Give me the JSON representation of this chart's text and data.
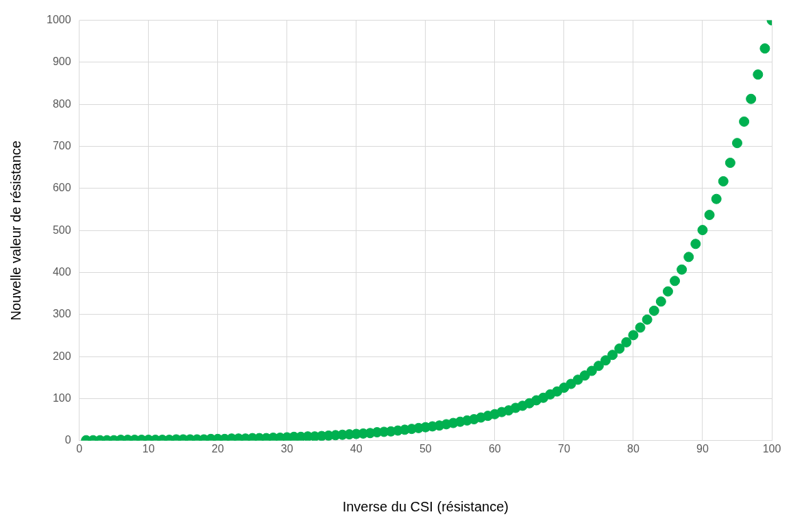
{
  "chart_data": {
    "type": "scatter",
    "xlabel": "Inverse du CSI (résistance)",
    "ylabel": "Nouvelle valeur de résistance",
    "x": [
      1,
      2,
      3,
      4,
      5,
      6,
      7,
      8,
      9,
      10,
      11,
      12,
      13,
      14,
      15,
      16,
      17,
      18,
      19,
      20,
      21,
      22,
      23,
      24,
      25,
      26,
      27,
      28,
      29,
      30,
      31,
      32,
      33,
      34,
      35,
      36,
      37,
      38,
      39,
      40,
      41,
      42,
      43,
      44,
      45,
      46,
      47,
      48,
      49,
      50,
      51,
      52,
      53,
      54,
      55,
      56,
      57,
      58,
      59,
      60,
      61,
      62,
      63,
      64,
      65,
      66,
      67,
      68,
      69,
      70,
      71,
      72,
      73,
      74,
      75,
      76,
      77,
      78,
      79,
      80,
      81,
      82,
      83,
      84,
      85,
      86,
      87,
      88,
      89,
      90,
      91,
      92,
      93,
      94,
      95,
      96,
      97,
      98,
      99,
      100
    ],
    "series": [
      {
        "color": "#00b050",
        "values": [
          1,
          1,
          1,
          1,
          1,
          2,
          2,
          2,
          2,
          2,
          2,
          2,
          2,
          3,
          3,
          3,
          3,
          3,
          4,
          4,
          4,
          5,
          5,
          5,
          6,
          6,
          6,
          7,
          7,
          8,
          9,
          9,
          10,
          10,
          11,
          12,
          13,
          14,
          15,
          16,
          17,
          18,
          20,
          21,
          22,
          24,
          26,
          28,
          30,
          32,
          34,
          36,
          39,
          42,
          45,
          48,
          51,
          55,
          59,
          63,
          68,
          72,
          78,
          83,
          89,
          96,
          102,
          110,
          117,
          126,
          135,
          145,
          155,
          166,
          178,
          191,
          204,
          219,
          234,
          251,
          269,
          288,
          309,
          331,
          355,
          380,
          407,
          437,
          468,
          501,
          537,
          575,
          617,
          661,
          708,
          759,
          813,
          871,
          933,
          1000
        ]
      }
    ],
    "xlim": [
      0,
      100
    ],
    "xticks": [
      0,
      10,
      20,
      30,
      40,
      50,
      60,
      70,
      80,
      90,
      100
    ],
    "ylim": [
      0,
      1000
    ],
    "yticks": [
      0,
      100,
      200,
      300,
      400,
      500,
      600,
      700,
      800,
      900,
      1000
    ],
    "grid": true,
    "legend": false,
    "marker": "circle"
  }
}
